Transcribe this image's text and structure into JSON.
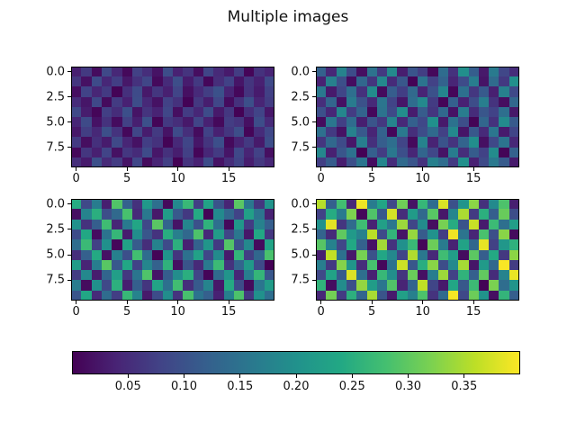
{
  "figure": {
    "title": "Multiple images",
    "background_color": "#ffffff",
    "text_color": "#111111",
    "frame_color": "#000000"
  },
  "chart_data": {
    "type": "heatmap",
    "title": "Multiple images",
    "subtitle": "",
    "xlabel": "",
    "ylabel": "",
    "grid": false,
    "n_rows": 10,
    "n_cols": 20,
    "x_range": [
      -0.5,
      19.5
    ],
    "y_range": [
      9.5,
      -0.5
    ],
    "x_ticks": [
      "0",
      "5",
      "10",
      "15"
    ],
    "x_tick_values": [
      0,
      5,
      10,
      15
    ],
    "y_ticks": [
      "0.0",
      "2.5",
      "5.0",
      "7.5"
    ],
    "y_tick_values": [
      0,
      2.5,
      5,
      7.5
    ],
    "colormap": "viridis",
    "colormap_stops": [
      "#440154",
      "#482475",
      "#414487",
      "#355f8d",
      "#2a788e",
      "#21918c",
      "#22a884",
      "#44bf70",
      "#7ad151",
      "#bddf26",
      "#fde725"
    ],
    "vmin": 0.0,
    "vmax": 0.4,
    "value_scale": 0.001,
    "colorbar": {
      "orientation": "horizontal",
      "position": "bottom",
      "tick_labels": [
        "0.05",
        "0.10",
        "0.15",
        "0.20",
        "0.25",
        "0.30",
        "0.35"
      ],
      "tick_values": [
        0.05,
        0.1,
        0.15,
        0.2,
        0.25,
        0.3,
        0.35
      ]
    },
    "subplots": [
      {
        "name": "top-left",
        "data_range": [
          0.0,
          0.1
        ],
        "values_milli": [
          [
            34,
            67,
            12,
            88,
            45,
            9,
            76,
            53,
            21,
            94,
            38,
            60,
            15,
            82,
            47,
            29,
            71,
            5,
            58,
            40
          ],
          [
            62,
            18,
            91,
            44,
            73,
            26,
            57,
            83,
            10,
            49,
            95,
            31,
            66,
            7,
            52,
            78,
            23,
            61,
            36,
            87
          ],
          [
            14,
            79,
            42,
            68,
            3,
            55,
            90,
            27,
            63,
            35,
            81,
            17,
            48,
            72,
            99,
            40,
            8,
            59,
            30,
            75
          ],
          [
            50,
            24,
            86,
            11,
            69,
            37,
            93,
            46,
            19,
            77,
            58,
            2,
            65,
            33,
            84,
            13,
            56,
            96,
            41,
            70
          ],
          [
            88,
            32,
            6,
            74,
            51,
            97,
            22,
            60,
            39,
            85,
            16,
            70,
            44,
            92,
            28,
            64,
            1,
            53,
            80,
            25
          ],
          [
            43,
            89,
            20,
            57,
            13,
            76,
            34,
            98,
            4,
            66,
            52,
            27,
            81,
            38,
            9,
            71,
            60,
            17,
            94,
            48
          ],
          [
            26,
            72,
            45,
            96,
            59,
            8,
            83,
            31,
            67,
            21,
            90,
            54,
            12,
            78,
            36,
            63,
            95,
            5,
            50,
            84
          ],
          [
            68,
            15,
            55,
            30,
            87,
            42,
            19,
            73,
            58,
            3,
            46,
            82,
            24,
            61,
            97,
            10,
            39,
            66,
            28,
            93
          ],
          [
            7,
            62,
            35,
            80,
            18,
            64,
            49,
            91,
            25,
            56,
            33,
            75,
            6,
            44,
            69,
            23,
            86,
            41,
            77,
            16
          ],
          [
            54,
            29,
            98,
            47,
            70,
            22,
            85,
            11,
            40,
            74,
            1,
            59,
            37,
            92,
            20,
            51,
            79,
            32,
            65,
            43
          ]
        ]
      },
      {
        "name": "top-right",
        "data_range": [
          0.0,
          0.2
        ],
        "values_milli": [
          [
            123,
            45,
            178,
            92,
            16,
            150,
            67,
            188,
            33,
            104,
            72,
            9,
            141,
            58,
            196,
            119,
            27,
            163,
            85,
            51
          ],
          [
            38,
            172,
            96,
            14,
            133,
            61,
            185,
            49,
            108,
            2,
            154,
            77,
            126,
            42,
            91,
            168,
            22,
            139,
            66,
            197
          ],
          [
            160,
            29,
            83,
            145,
            56,
            191,
            11,
            117,
            73,
            136,
            40,
            99,
            181,
            6,
            148,
            64,
            112,
            35,
            175,
            88
          ],
          [
            53,
            129,
            18,
            165,
            101,
            47,
            156,
            80,
            24,
            143,
            187,
            69,
            5,
            121,
            37,
            94,
            170,
            59,
            15,
            132
          ],
          [
            98,
            44,
            183,
            70,
            127,
            8,
            152,
            89,
            193,
            31,
            115,
            62,
            135,
            20,
            166,
            50,
            107,
            79,
            146,
            26
          ],
          [
            12,
            158,
            75,
            140,
            34,
            103,
            65,
            179,
            46,
            122,
            86,
            199,
            28,
            151,
            95,
            3,
            131,
            57,
            190,
            113
          ],
          [
            147,
            68,
            19,
            175,
            111,
            41,
            124,
            7,
            162,
            54,
            93,
            138,
            76,
            186,
            23,
            109,
            48,
            157,
            30,
            82
          ],
          [
            63,
            134,
            90,
            25,
            169,
            55,
            118,
            144,
            81,
            10,
            176,
            39,
            102,
            60,
            128,
            195,
            17,
            87,
            153,
            45
          ],
          [
            184,
            36,
            106,
            149,
            1,
            120,
            71,
            159,
            97,
            43,
            130,
            84,
            21,
            167,
            52,
            116,
            78,
            192,
            4,
            125
          ],
          [
            74,
            116,
            32,
            96,
            155,
            13,
            182,
            50,
            137,
            105,
            58,
            173,
            142,
            68,
            198,
            37,
            89,
            161,
            114,
            29
          ]
        ]
      },
      {
        "name": "bottom-left",
        "data_range": [
          0.0,
          0.3
        ],
        "values_milli": [
          [
            245,
            88,
            167,
            34,
            290,
            123,
            56,
            212,
            145,
            9,
            188,
            267,
            74,
            231,
            102,
            41,
            296,
            159,
            63,
            204
          ],
          [
            17,
            178,
            250,
            95,
            136,
            282,
            48,
            160,
            27,
            219,
            111,
            66,
            243,
            3,
            189,
            132,
            79,
            225,
            154,
            38
          ],
          [
            201,
            57,
            119,
            274,
            43,
            163,
            235,
            86,
            296,
            128,
            22,
            182,
            99,
            257,
            146,
            8,
            211,
            70,
            175,
            118
          ],
          [
            92,
            238,
            14,
            152,
            264,
            31,
            195,
            107,
            59,
            248,
            171,
            134,
            287,
            46,
            220,
            83,
            158,
            25,
            239,
            64
          ],
          [
            143,
            269,
            76,
            198,
            7,
            229,
            115,
            52,
            176,
            90,
            253,
            36,
            125,
            209,
            68,
            292,
            101,
            186,
            11,
            232
          ],
          [
            54,
            121,
            242,
            19,
            173,
            97,
            278,
            140,
            4,
            206,
            61,
            149,
            227,
            85,
            191,
            29,
            260,
            72,
            133,
            284
          ],
          [
            217,
            40,
            168,
            295,
            110,
            236,
            79,
            183,
            125,
            256,
            16,
            103,
            47,
            162,
            271,
            58,
            129,
            214,
            91,
            1
          ],
          [
            70,
            185,
            32,
            130,
            222,
            65,
            156,
            288,
            23,
            117,
            193,
            250,
            81,
            5,
            139,
            207,
            44,
            170,
            262,
            108
          ],
          [
            166,
            12,
            199,
            87,
            253,
            34,
            120,
            61,
            231,
            148,
            276,
            53,
            113,
            179,
            26,
            243,
            94,
            10,
            155,
            218
          ],
          [
            105,
            237,
            49,
            140,
            73,
            266,
            178,
            28,
            92,
            194,
            60,
            283,
            152,
            121,
            37,
            173,
            286,
            65,
            200,
            144
          ]
        ]
      },
      {
        "name": "bottom-right",
        "data_range": [
          0.0,
          0.4
        ],
        "values_milli": [
          [
            356,
            122,
            278,
            45,
            390,
            167,
            233,
            88,
            312,
            19,
            264,
            141,
            378,
            99,
            205,
            330,
            56,
            189,
            287,
            34
          ],
          [
            78,
            245,
            163,
            322,
            7,
            289,
            110,
            374,
            52,
            218,
            136,
            295,
            26,
            181,
            349,
            68,
            252,
            119,
            307,
            94
          ],
          [
            200,
            384,
            62,
            139,
            274,
            38,
            225,
            158,
            340,
            83,
            191,
            15,
            318,
            246,
            104,
            367,
            30,
            271,
            146,
            222
          ],
          [
            128,
            49,
            301,
            214,
            174,
            358,
            91,
            260,
            22,
            337,
            115,
            202,
            72,
            392,
            154,
            42,
            284,
            96,
            329,
            11
          ],
          [
            294,
            176,
            85,
            240,
            124,
            20,
            344,
            59,
            198,
            268,
            6,
            310,
            165,
            38,
            229,
            133,
            386,
            76,
            210,
            255
          ],
          [
            33,
            363,
            148,
            27,
            317,
            101,
            236,
            185,
            80,
            352,
            160,
            46,
            275,
            221,
            13,
            298,
            118,
            242,
            65,
            331
          ],
          [
            170,
            66,
            326,
            209,
            54,
            282,
            8,
            150,
            370,
            106,
            248,
            329,
            93,
            188,
            346,
            24,
            215,
            134,
            397,
            70
          ],
          [
            87,
            230,
            112,
            379,
            145,
            36,
            266,
            195,
            61,
            308,
            18,
            168,
            341,
            77,
            258,
            121,
            302,
            50,
            178,
            388
          ],
          [
            258,
            14,
            192,
            96,
            335,
            219,
            157,
            290,
            40,
            126,
            362,
            82,
            28,
            234,
            109,
            272,
            2,
            320,
            142,
            206
          ],
          [
            44,
            315,
            69,
            253,
            130,
            348,
            103,
            29,
            224,
            172,
            286,
            59,
            137,
            395,
            86,
            310,
            203,
            16,
            261,
            118
          ]
        ]
      }
    ]
  }
}
